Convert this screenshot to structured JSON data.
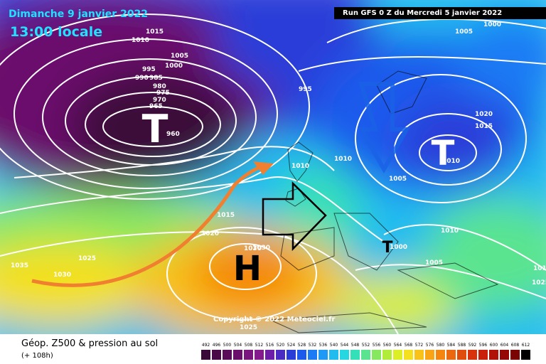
{
  "header": {
    "date": "Dimanche 9 janvier 2022",
    "time": "13:00 locale",
    "run": "Run GFS 0 Z du Mercredi 5 janvier 2022"
  },
  "systems": [
    {
      "symbol": "T",
      "type": "low",
      "pressure": "960"
    },
    {
      "symbol": "T",
      "type": "low",
      "pressure": "1010"
    },
    {
      "symbol": "H",
      "type": "high",
      "pressure": "1030"
    },
    {
      "symbol": "T",
      "type": "low",
      "pressure": "1000"
    }
  ],
  "isobar_labels": [
    "1015",
    "1010",
    "1005",
    "1000",
    "995",
    "990",
    "985",
    "980",
    "975",
    "970",
    "965",
    "995",
    "1005",
    "1000",
    "1020",
    "1015",
    "1010",
    "1005",
    "1015",
    "1020",
    "1025",
    "1035",
    "1030",
    "1025",
    "1030",
    "1010",
    "1005",
    "1010",
    "1015",
    "1025"
  ],
  "copyright": "Copyright © 2022 Meteociel.fr",
  "legend": {
    "title": "Géop. Z500 & pression au sol",
    "subtitle": "(+ 108h)",
    "scale": [
      "492",
      "496",
      "500",
      "504",
      "508",
      "512",
      "516",
      "520",
      "524",
      "528",
      "532",
      "536",
      "540",
      "544",
      "548",
      "552",
      "556",
      "560",
      "564",
      "568",
      "572",
      "576",
      "580",
      "584",
      "588",
      "592",
      "596",
      "600",
      "604",
      "608",
      "612"
    ],
    "colors": [
      "#3a0a38",
      "#4a0a48",
      "#5a0c5a",
      "#6a106c",
      "#7a147e",
      "#841a8e",
      "#6c1ea8",
      "#4a2cc4",
      "#2a3cd8",
      "#1c5aec",
      "#1c7af4",
      "#1e9af6",
      "#20bcf0",
      "#26d6e0",
      "#34e0b8",
      "#5ae490",
      "#86e85e",
      "#b2ec3a",
      "#dcee26",
      "#f4e01e",
      "#f8c218",
      "#f8a414",
      "#f48610",
      "#ec680e",
      "#e04c0c",
      "#d8320c",
      "#c8200a",
      "#b01208",
      "#960808",
      "#7a0404",
      "#000000"
    ]
  }
}
